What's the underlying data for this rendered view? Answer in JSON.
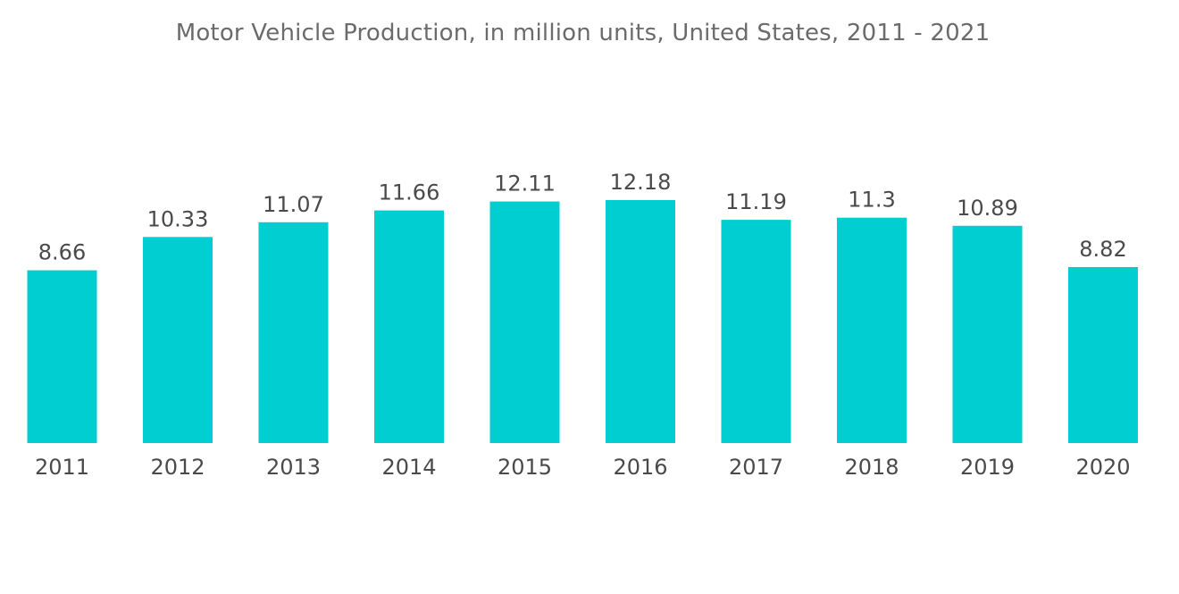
{
  "chart_data": {
    "type": "bar",
    "title": "Motor Vehicle Production, in million units, United States, 2011 - 2021",
    "xlabel": "",
    "ylabel": "",
    "categories": [
      "2011",
      "2012",
      "2013",
      "2014",
      "2015",
      "2016",
      "2017",
      "2018",
      "2019",
      "2020"
    ],
    "values": [
      8.66,
      10.33,
      11.07,
      11.66,
      12.11,
      12.18,
      11.19,
      11.3,
      10.89,
      8.82
    ],
    "value_labels": [
      "8.66",
      "10.33",
      "11.07",
      "11.66",
      "12.11",
      "12.18",
      "11.19",
      "11.3",
      "10.89",
      "8.82"
    ],
    "ylim": [
      0,
      12.18
    ],
    "grid": false,
    "legend": "none",
    "colors": {
      "bar": "#00CED1",
      "text": "#4a4a4a",
      "title": "#6b6b6b"
    }
  }
}
